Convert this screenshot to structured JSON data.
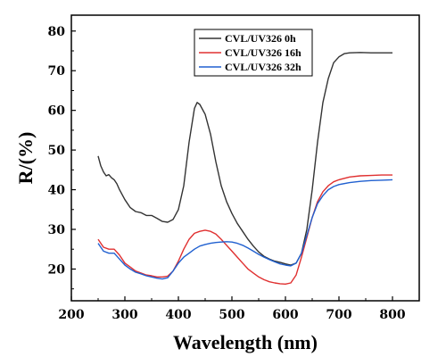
{
  "chart_data": {
    "type": "line",
    "title": "",
    "xlabel": "Wavelength (nm)",
    "ylabel": "R/(%)",
    "xlim": [
      200,
      850
    ],
    "ylim": [
      12,
      84
    ],
    "xticks": [
      200,
      300,
      400,
      500,
      600,
      700,
      800
    ],
    "yticks": [
      20,
      30,
      40,
      50,
      60,
      70,
      80
    ],
    "grid": false,
    "legend_position": "top-center",
    "series": [
      {
        "name": "CVL/UV326 0h",
        "color": "#333333",
        "x": [
          250,
          255,
          260,
          265,
          270,
          275,
          280,
          285,
          290,
          300,
          310,
          320,
          330,
          340,
          350,
          360,
          370,
          380,
          390,
          400,
          410,
          420,
          430,
          435,
          440,
          450,
          460,
          470,
          480,
          490,
          500,
          510,
          520,
          530,
          540,
          550,
          560,
          570,
          580,
          590,
          600,
          610,
          620,
          630,
          640,
          650,
          660,
          670,
          680,
          690,
          700,
          710,
          720,
          740,
          760,
          780,
          800
        ],
        "y": [
          48.5,
          46,
          44.5,
          43.5,
          43.8,
          43,
          42.5,
          41.5,
          40,
          37.5,
          35.5,
          34.5,
          34.2,
          33.5,
          33.5,
          32.8,
          32,
          31.8,
          32.5,
          35,
          41,
          52,
          60.5,
          62,
          61.5,
          59,
          54,
          47,
          41,
          37,
          34,
          31.5,
          29.5,
          27.5,
          25.8,
          24.3,
          23.2,
          22.5,
          22,
          21.7,
          21.3,
          21,
          21.5,
          24,
          30,
          40,
          52,
          62,
          68,
          72,
          73.5,
          74.3,
          74.5,
          74.6,
          74.5,
          74.5,
          74.5
        ]
      },
      {
        "name": "CVL/UV326 16h",
        "color": "#e03030",
        "x": [
          250,
          260,
          270,
          280,
          290,
          300,
          310,
          320,
          330,
          340,
          350,
          360,
          370,
          380,
          390,
          400,
          410,
          420,
          430,
          440,
          450,
          460,
          470,
          480,
          490,
          500,
          510,
          520,
          530,
          540,
          550,
          560,
          570,
          580,
          590,
          600,
          610,
          620,
          630,
          640,
          650,
          660,
          670,
          680,
          690,
          700,
          720,
          740,
          760,
          780,
          800
        ],
        "y": [
          27.5,
          25.5,
          25,
          25,
          23.5,
          21.5,
          20.5,
          19.5,
          19,
          18.5,
          18.3,
          18,
          18,
          18.2,
          19.5,
          22,
          25,
          27.5,
          29,
          29.5,
          29.8,
          29.5,
          28.8,
          27.5,
          26,
          24.5,
          23,
          21.5,
          20,
          19,
          18,
          17.3,
          16.8,
          16.5,
          16.3,
          16.2,
          16.5,
          18.5,
          23,
          28,
          33,
          37,
          39.5,
          41,
          42,
          42.5,
          43.2,
          43.5,
          43.6,
          43.7,
          43.7
        ]
      },
      {
        "name": "CVL/UV326 32h",
        "color": "#2060d0",
        "x": [
          250,
          260,
          270,
          280,
          290,
          300,
          310,
          320,
          330,
          340,
          350,
          360,
          370,
          380,
          390,
          400,
          410,
          420,
          430,
          440,
          450,
          460,
          470,
          480,
          490,
          500,
          510,
          520,
          530,
          540,
          550,
          560,
          570,
          580,
          590,
          600,
          610,
          620,
          630,
          640,
          650,
          660,
          670,
          680,
          690,
          700,
          720,
          740,
          760,
          780,
          800
        ],
        "y": [
          26.5,
          24.5,
          24,
          24,
          22.5,
          21,
          20,
          19.2,
          18.8,
          18.3,
          18,
          17.7,
          17.5,
          17.8,
          19.5,
          21.5,
          23,
          24,
          25,
          25.8,
          26.2,
          26.5,
          26.7,
          26.8,
          26.9,
          26.8,
          26.5,
          26,
          25.3,
          24.5,
          23.7,
          23,
          22.4,
          21.8,
          21.3,
          21,
          20.8,
          21.5,
          24,
          28.5,
          33,
          36.5,
          38.5,
          40,
          40.8,
          41.3,
          41.8,
          42.1,
          42.3,
          42.4,
          42.5
        ]
      }
    ]
  }
}
